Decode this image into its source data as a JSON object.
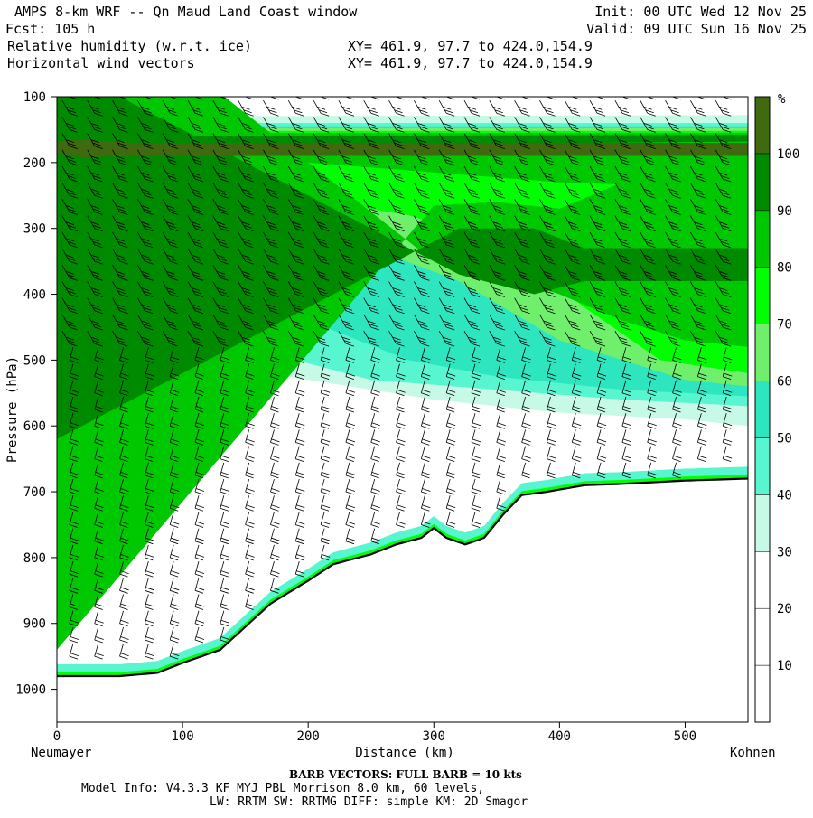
{
  "header": {
    "title": "AMPS 8-km WRF -- Qn Maud Land Coast window",
    "fcst": "Fcst:  105 h",
    "field1": "Relative humidity (w.r.t. ice)",
    "field2": "Horizontal wind vectors",
    "init": "Init: 00 UTC Wed 12 Nov 25",
    "valid": "Valid: 09 UTC Sun 16 Nov 25",
    "xy1": "XY= 461.9, 97.7 to 424.0,154.9",
    "xy2": "XY= 461.9, 97.7 to 424.0,154.9"
  },
  "chart_data": {
    "type": "heatmap",
    "title": "Relative humidity (w.r.t. ice) cross section with horizontal wind barbs",
    "xlabel": "Distance (km)",
    "ylabel": "Pressure (hPa)",
    "xlim": [
      0,
      550
    ],
    "ylim": [
      100,
      1050
    ],
    "x_ticks": [
      0,
      100,
      200,
      300,
      400,
      500
    ],
    "y_ticks": [
      100,
      200,
      300,
      400,
      500,
      600,
      700,
      800,
      900,
      1000
    ],
    "x_left_label": "Neumayer",
    "x_right_label": "Kohnen",
    "colorbar": {
      "unit": "%",
      "levels": [
        0,
        10,
        20,
        30,
        40,
        50,
        60,
        70,
        80,
        90,
        100
      ],
      "labels": [
        "10",
        "20",
        "30",
        "40",
        "50",
        "60",
        "70",
        "80",
        "90",
        "100"
      ],
      "colors": [
        "#ffffff",
        "#ffffff",
        "#ffffff",
        "#c6f9e6",
        "#57f5d0",
        "#2de6c0",
        "#70ef6c",
        "#00ff00",
        "#00c800",
        "#008a00",
        "#3f6a10"
      ]
    },
    "terrain_pressure_hPa": {
      "distance_km": [
        0,
        20,
        50,
        80,
        100,
        130,
        150,
        170,
        200,
        220,
        250,
        270,
        290,
        300,
        310,
        325,
        340,
        355,
        370,
        390,
        420,
        450,
        500,
        550
      ],
      "pressure": [
        980,
        980,
        980,
        975,
        960,
        940,
        905,
        870,
        835,
        810,
        795,
        780,
        770,
        755,
        770,
        780,
        770,
        735,
        705,
        700,
        690,
        688,
        683,
        680
      ]
    },
    "rh_bands": [
      {
        "range": "90-100",
        "description": "thin layer near 150-200 hPa across section; darkest near 0-60 km at 170-200 hPa"
      },
      {
        "range": "80-90",
        "description": "large region 250-550 hPa from 280 km to 550 km"
      },
      {
        "range": "60-80",
        "description": "broad moist layer 200-550 hPa, deepening eastward"
      },
      {
        "range": "30-50",
        "description": "tongue 300-600 hPa west of 300 km; shallow layer near surface"
      },
      {
        "range": "0-20",
        "description": "dry region 600 hPa to surface between 0 and 450 km"
      }
    ],
    "wind_barbs": {
      "note": "BARB VECTORS: FULL BARB = 10 kts",
      "x_km": [
        10,
        30,
        50,
        70,
        90,
        110,
        130,
        150,
        170,
        190,
        210,
        230,
        250,
        270,
        290,
        310,
        330,
        350,
        370,
        390,
        410,
        430,
        450,
        470,
        490,
        510,
        530
      ],
      "levels_hPa": [
        100,
        125,
        150,
        175,
        200,
        225,
        250,
        275,
        300,
        325,
        350,
        375,
        400,
        425,
        450,
        475,
        500,
        525,
        550,
        575,
        600,
        625,
        650,
        675,
        700,
        725,
        750,
        775,
        800,
        825,
        850,
        875,
        900,
        925,
        950,
        975
      ]
    }
  },
  "footer": {
    "barb_note": "BARB VECTORS:  FULL BARB = 10 kts",
    "model_info": "Model Info: V4.3.3   KF      MYJ PBL  Morrison            8.0 km,  60 levels,",
    "physics": "LW: RRTM SW: RRTMG   DIFF: simple KM: 2D Smagor"
  }
}
